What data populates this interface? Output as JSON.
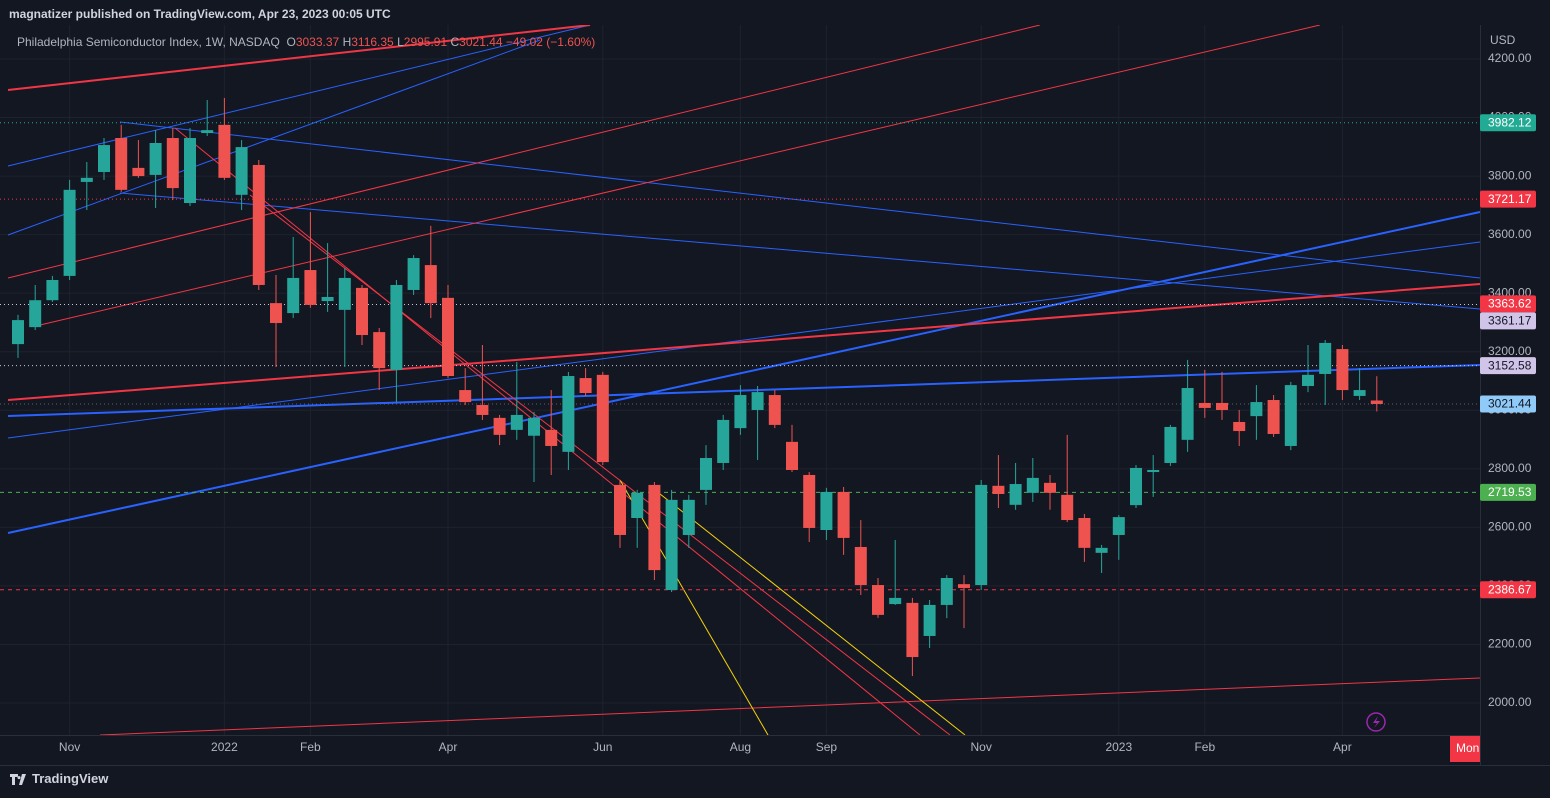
{
  "header": {
    "publisher": "magnatizer published on TradingView.com, Apr 23, 2023 00:05 UTC"
  },
  "footer": {
    "brand": "TradingView"
  },
  "chart_data": {
    "type": "candlestick",
    "title": "Philadelphia Semiconductor Index, 1W, NASDAQ",
    "ohlc_labels": [
      "O",
      "H",
      "L",
      "C"
    ],
    "change_label": "−49.02 (−1.60%)",
    "currency": "USD",
    "cursor_label": "Mon",
    "categories": [
      null,
      null,
      null,
      "Nov",
      null,
      null,
      null,
      null,
      null,
      null,
      null,
      null,
      "2022",
      null,
      null,
      null,
      null,
      "Feb",
      null,
      null,
      null,
      null,
      null,
      null,
      null,
      "Apr",
      null,
      null,
      null,
      null,
      null,
      null,
      null,
      null,
      "Jun",
      null,
      null,
      null,
      null,
      null,
      null,
      null,
      "Aug",
      null,
      null,
      null,
      null,
      "Sep",
      null,
      null,
      null,
      null,
      null,
      null,
      null,
      null,
      "Nov",
      null,
      null,
      null,
      null,
      null,
      null,
      null,
      "2023",
      null,
      null,
      null,
      null,
      "Feb",
      null,
      null,
      null,
      null,
      null,
      null,
      null,
      "Apr",
      null,
      null
    ],
    "open": [
      3226,
      3284,
      3376,
      3459,
      3780,
      3814,
      3930,
      3828,
      3804,
      3930,
      3708,
      3947,
      3975,
      3736,
      3838,
      3366,
      3332,
      3479,
      3373,
      3343,
      3418,
      3267,
      3138,
      3411,
      3496,
      3384,
      3069,
      3018,
      2974,
      2933,
      2913,
      2933,
      2858,
      3110,
      3121,
      2745,
      2632,
      2745,
      2386,
      2574,
      2728,
      2820,
      2939,
      3001,
      3052,
      2892,
      2779,
      2591,
      2721,
      2533,
      2403,
      2338,
      2342,
      2229,
      2335,
      2406,
      2403,
      2742,
      2677,
      2718,
      2752,
      2711,
      2632,
      2513,
      2574,
      2676,
      2789,
      2820,
      2899,
      3025,
      3025,
      2960,
      2980,
      3035,
      2878,
      3083,
      3124,
      3209,
      3049,
      3033.37
    ],
    "high": [
      3326,
      3428,
      3459,
      3787,
      3848,
      3930,
      3975,
      3923,
      3957,
      3964,
      3964,
      4060,
      4067,
      3923,
      3855,
      3462,
      3592,
      3677,
      3571,
      3486,
      3428,
      3281,
      3445,
      3530,
      3630,
      3428,
      3144,
      3223,
      2984,
      3165,
      2994,
      3069,
      3131,
      3144,
      3131,
      2762,
      2728,
      2755,
      2728,
      2711,
      2881,
      2984,
      3086,
      3083,
      3069,
      2950,
      2789,
      2735,
      2738,
      2625,
      2427,
      2557,
      2359,
      2352,
      2437,
      2437,
      2762,
      2847,
      2820,
      2837,
      2779,
      2916,
      2646,
      2540,
      2642,
      2813,
      2847,
      2950,
      3172,
      3138,
      3131,
      3001,
      3086,
      3052,
      3097,
      3223,
      3240,
      3223,
      3144,
      3116.35
    ],
    "low": [
      3179,
      3274,
      3370,
      3445,
      3684,
      3787,
      3746,
      3794,
      3691,
      3718,
      3698,
      3937,
      3787,
      3684,
      3411,
      3148,
      3315,
      3350,
      3336,
      3148,
      3223,
      3069,
      3028,
      3394,
      3315,
      3110,
      3018,
      2967,
      2881,
      2899,
      2755,
      2779,
      2796,
      3049,
      2813,
      2530,
      2530,
      2420,
      2379,
      2530,
      2677,
      2796,
      2916,
      2830,
      2939,
      2789,
      2550,
      2557,
      2506,
      2369,
      2291,
      2335,
      2092,
      2188,
      2290,
      2256,
      2386,
      2666,
      2660,
      2687,
      2660,
      2618,
      2482,
      2444,
      2489,
      2666,
      2704,
      2810,
      2858,
      2974,
      2967,
      2878,
      2899,
      2909,
      2864,
      3062,
      3018,
      3035,
      3035,
      2995.91
    ],
    "close": [
      3308,
      3376,
      3445,
      3753,
      3794,
      3906,
      3753,
      3800,
      3913,
      3759,
      3930,
      3957,
      3794,
      3899,
      3428,
      3298,
      3452,
      3360,
      3387,
      3452,
      3257,
      3144,
      3428,
      3520,
      3366,
      3117,
      3028,
      2984,
      2916,
      2984,
      2974,
      2878,
      3117,
      3059,
      2823,
      2574,
      2718,
      2454,
      2694,
      2694,
      2837,
      2967,
      3052,
      3062,
      2950,
      2796,
      2598,
      2721,
      2564,
      2403,
      2301,
      2359,
      2157,
      2335,
      2427,
      2393,
      2745,
      2714,
      2748,
      2769,
      2718,
      2625,
      2530,
      2530,
      2635,
      2803,
      2796,
      2943,
      3076,
      3008,
      3001,
      2929,
      3028,
      2919,
      3086,
      3121,
      3230,
      3069,
      3069,
      3021.44
    ],
    "up_color": "#26a69a",
    "down_color": "#ef5350",
    "ylim": [
      1890.7,
      4316.1
    ],
    "yticks": [
      {
        "value": 2000,
        "label": "2000.00"
      },
      {
        "value": 2200,
        "label": "2200.00"
      },
      {
        "value": 2400,
        "label": "2400.00"
      },
      {
        "value": 2600,
        "label": "2600.00"
      },
      {
        "value": 2800,
        "label": "2800.00"
      },
      {
        "value": 3000,
        "label": "3000.00"
      },
      {
        "value": 3200,
        "label": "3200.00"
      },
      {
        "value": 3400,
        "label": "3400.00"
      },
      {
        "value": 3600,
        "label": "3600.00"
      },
      {
        "value": 3800,
        "label": "3800.00"
      },
      {
        "value": 4000,
        "label": "4000.00"
      },
      {
        "value": 4200,
        "label": "4200.00"
      }
    ],
    "grid": true,
    "price_lines": [
      {
        "value": 3982.12,
        "color": "#22ab94",
        "text_color": "#ffffff",
        "dash": "dotted"
      },
      {
        "value": 3721.17,
        "color": "#f23645",
        "text_color": "#ffffff",
        "dash": "dotted"
      },
      {
        "value": 3363.62,
        "color": "#f23645",
        "text_color": "#ffffff",
        "dash": null
      },
      {
        "value": 3361.17,
        "color": "#d1c4e9",
        "text_color": "#131722",
        "dash": "dotted"
      },
      {
        "value": 3152.58,
        "color": "#d1c4e9",
        "text_color": "#131722",
        "dash": "dotted"
      },
      {
        "value": 2719.53,
        "color": "#4caf50",
        "text_color": "#ffffff",
        "dash": "dashed"
      },
      {
        "value": 2386.67,
        "color": "#f23645",
        "text_color": "#ffffff",
        "dash": "dashed"
      }
    ],
    "last_price_color": "#90caf9"
  }
}
